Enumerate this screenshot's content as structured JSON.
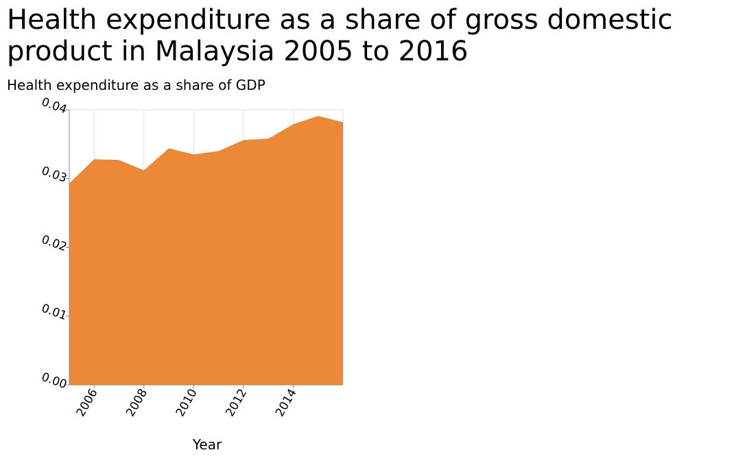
{
  "title": "Health expenditure as a share of gross domestic product in Malaysia 2005 to 2016",
  "chart_data": {
    "type": "area",
    "title": "Health expenditure as a share of gross domestic product in Malaysia 2005 to 2016",
    "xlabel": "Year",
    "ylabel": "Health expenditure as a share of GDP",
    "x": [
      2005,
      2006,
      2007,
      2008,
      2009,
      2010,
      2011,
      2012,
      2013,
      2014,
      2015,
      2016
    ],
    "series": [
      {
        "values": [
          0.0293,
          0.0328,
          0.0327,
          0.0312,
          0.0344,
          0.0335,
          0.034,
          0.0356,
          0.0358,
          0.0379,
          0.0391,
          0.0382
        ]
      }
    ],
    "xlim": [
      2005,
      2016
    ],
    "ylim": [
      0,
      0.04
    ],
    "x_ticks": [
      2006,
      2008,
      2010,
      2012,
      2014
    ],
    "y_ticks": [
      "0.00",
      "0.01",
      "0.02",
      "0.03",
      "0.04"
    ],
    "grid": true,
    "fill_color": "#ed8936",
    "grid_color": "#dddddd"
  }
}
